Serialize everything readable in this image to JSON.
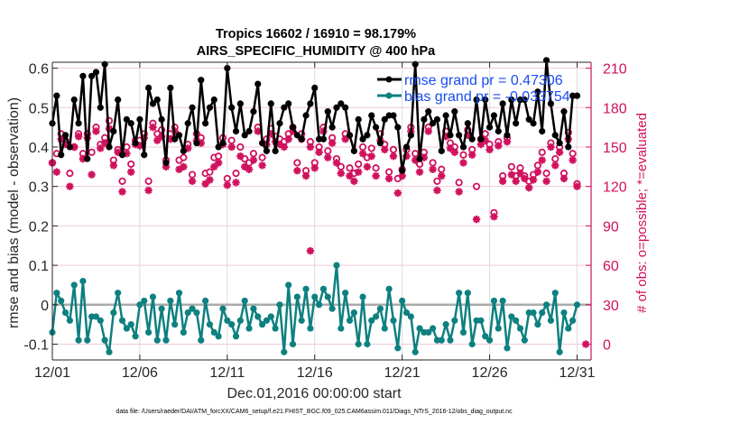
{
  "chart_data": {
    "type": "line",
    "title": "Tropics 16602 / 16910 = 98.179%",
    "subtitle": "AIRS_SPECIFIC_HUMIDITY @ 400 hPa",
    "xlabel": "Dec.01,2016 00:00:00 start",
    "ylabel": "rmse and bias (model - observation)",
    "ylabel_right": "# of obs: o=possible; *=evaluated",
    "footnote": "data file: /Users/raeder/DAI/ATM_forcXX/CAM6_setup/f.e21.FHIST_BGC.f09_025.CAM6assim.011/Diags_NTrS_2016-12/obs_diag_output.nc",
    "x_ticks": [
      0,
      5,
      10,
      15,
      20,
      25,
      30
    ],
    "x_tick_labels": [
      "12/01",
      "12/06",
      "12/11",
      "12/16",
      "12/21",
      "12/26",
      "12/31"
    ],
    "xlim": [
      0,
      30.8
    ],
    "ylim": [
      -0.14,
      0.615
    ],
    "y_ticks": [
      -0.1,
      0,
      0.1,
      0.2,
      0.3,
      0.4,
      0.5,
      0.6
    ],
    "y_tick_labels": [
      "-0.1",
      "0",
      "0.1",
      "0.2",
      "0.3",
      "0.4",
      "0.5",
      "0.6"
    ],
    "ylim_right": [
      -12,
      214.5
    ],
    "y_ticks_right": [
      0,
      30,
      60,
      90,
      120,
      150,
      180,
      210
    ],
    "y_tick_labels_right": [
      "0",
      "30",
      "60",
      "90",
      "120",
      "150",
      "180",
      "210"
    ],
    "grid": true,
    "zero_line": 0,
    "legend_placement": "top-right",
    "colors": {
      "rmse": "#000000",
      "bias": "#0E8080",
      "obs": "#D0115E",
      "legend_text": "#1a4cf0",
      "grid": "#f0c8d8",
      "zero": "#aaaaaa"
    },
    "x_step_days": 0.25,
    "series": [
      {
        "name": "rmse grand pr = 0.47306",
        "legend_label": "rmse grand pr = 0.47306",
        "values": [
          0.46,
          0.53,
          0.38,
          0.43,
          0.4,
          0.52,
          0.46,
          0.58,
          0.37,
          0.58,
          0.59,
          0.5,
          0.61,
          0.4,
          0.44,
          0.52,
          0.38,
          0.47,
          0.46,
          0.41,
          0.47,
          0.38,
          0.55,
          0.51,
          0.52,
          0.47,
          0.36,
          0.55,
          0.42,
          0.43,
          0.39,
          0.46,
          0.5,
          0.41,
          0.57,
          0.46,
          0.5,
          0.52,
          0.4,
          0.41,
          0.6,
          0.5,
          0.44,
          0.51,
          0.43,
          0.44,
          0.49,
          0.56,
          0.41,
          0.39,
          0.51,
          0.39,
          0.46,
          0.5,
          0.51,
          0.45,
          0.43,
          0.42,
          0.48,
          0.51,
          0.55,
          0.42,
          0.42,
          0.49,
          0.45,
          0.5,
          0.51,
          0.5,
          0.43,
          0.39,
          0.47,
          0.42,
          0.43,
          0.48,
          0.45,
          0.41,
          0.47,
          0.48,
          0.48,
          0.45,
          0.34,
          0.4,
          0.43,
          0.61,
          0.37,
          0.47,
          0.49,
          0.46,
          0.47,
          0.39,
          0.48,
          0.43,
          0.49,
          0.43,
          0.4,
          0.46,
          0.42,
          0.52,
          0.42,
          0.52,
          0.45,
          0.48,
          0.44,
          0.51,
          0.43,
          0.52,
          0.46,
          0.52,
          0.52,
          0.47,
          0.46,
          0.54,
          0.44,
          0.62,
          0.51,
          0.43,
          0.41,
          0.49,
          0.4,
          0.53,
          0.53
        ],
        "color": "#000000"
      },
      {
        "name": "bias grand pr = -0.033754",
        "legend_label": "bias grand pr = -0.033754",
        "values": [
          -0.07,
          0.03,
          0.01,
          -0.02,
          -0.04,
          0.05,
          -0.09,
          0.06,
          -0.09,
          -0.03,
          -0.03,
          -0.04,
          -0.09,
          -0.12,
          -0.02,
          0.03,
          -0.04,
          -0.06,
          -0.05,
          -0.08,
          0.0,
          0.01,
          -0.07,
          0.02,
          -0.09,
          -0.01,
          -0.09,
          0.01,
          -0.05,
          0.03,
          -0.07,
          -0.02,
          -0.01,
          -0.02,
          -0.09,
          0.01,
          -0.05,
          -0.07,
          -0.08,
          -0.01,
          -0.04,
          -0.05,
          -0.08,
          -0.04,
          0.01,
          -0.06,
          -0.01,
          -0.03,
          -0.05,
          -0.04,
          -0.03,
          -0.06,
          0.0,
          -0.12,
          0.05,
          -0.1,
          0.02,
          -0.04,
          0.04,
          -0.06,
          0.02,
          0.0,
          0.04,
          0.02,
          -0.01,
          0.1,
          -0.06,
          0.03,
          -0.04,
          -0.02,
          -0.1,
          0.02,
          -0.1,
          -0.04,
          -0.03,
          -0.01,
          -0.06,
          0.04,
          -0.04,
          -0.11,
          0.01,
          -0.02,
          -0.03,
          -0.12,
          -0.06,
          -0.07,
          -0.07,
          -0.06,
          -0.09,
          -0.09,
          -0.05,
          -0.09,
          -0.04,
          0.03,
          -0.07,
          0.03,
          -0.1,
          -0.04,
          -0.04,
          -0.08,
          -0.09,
          0.01,
          -0.06,
          0.01,
          -0.11,
          -0.03,
          -0.04,
          -0.06,
          -0.09,
          -0.02,
          -0.02,
          -0.05,
          -0.02,
          0.0,
          -0.04,
          0.03,
          -0.12,
          -0.02,
          -0.06,
          -0.04,
          0.0
        ],
        "color": "#0E8080"
      },
      {
        "name": "# of obs possible",
        "marker": "o",
        "values": [
          138,
          145,
          160,
          155,
          130,
          150,
          160,
          145,
          160,
          146,
          165,
          152,
          157,
          170,
          140,
          148,
          124,
          150,
          137,
          155,
          155,
          160,
          124,
          168,
          160,
          163,
          140,
          160,
          165,
          140,
          142,
          152,
          129,
          160,
          157,
          130,
          131,
          142,
          143,
          157,
          126,
          155,
          130,
          150,
          141,
          138,
          145,
          165,
          142,
          156,
          164,
          158,
          156,
          154,
          160,
          165,
          138,
          160,
          132,
          154,
          138,
          150,
          165,
          147,
          157,
          141,
          135,
          160,
          134,
          130,
          137,
          150,
          142,
          149,
          134,
          160,
          152,
          131,
          148,
          126,
          133,
          148,
          165,
          145,
          137,
          146,
          165,
          138,
          124,
          133,
          162,
          153,
          150,
          123,
          144,
          163,
          148,
          120,
          156,
          160,
          152,
          100,
          154,
          128,
          157,
          135,
          128,
          134,
          128,
          124,
          129,
          136,
          146,
          130,
          153,
          141,
          150,
          130,
          161,
          145,
          122
        ],
        "color": "#D0115E"
      },
      {
        "name": "# of obs evaluated",
        "marker": "*",
        "values": [
          138,
          131,
          156,
          152,
          120,
          150,
          158,
          141,
          157,
          129,
          162,
          149,
          153,
          164,
          136,
          146,
          116,
          145,
          131,
          152,
          151,
          157,
          117,
          165,
          155,
          158,
          135,
          156,
          162,
          133,
          135,
          149,
          124,
          155,
          153,
          122,
          125,
          135,
          138,
          152,
          121,
          150,
          123,
          143,
          135,
          133,
          140,
          162,
          136,
          152,
          160,
          154,
          152,
          150,
          156,
          162,
          132,
          156,
          128,
          150,
          134,
          146,
          162,
          142,
          153,
          138,
          130,
          156,
          128,
          124,
          131,
          145,
          135,
          143,
          128,
          155,
          148,
          126,
          143,
          115,
          128,
          143,
          162,
          140,
          131,
          142,
          162,
          133,
          117,
          128,
          158,
          149,
          146,
          116,
          138,
          159,
          144,
          95,
          152,
          155,
          148,
          97,
          151,
          124,
          154,
          129,
          124,
          130,
          126,
          119,
          125,
          131,
          140,
          124,
          150,
          136,
          146,
          126,
          156,
          140,
          120
        ],
        "color": "#D0115E"
      }
    ],
    "isolated_points": [
      {
        "x_day": 14.75,
        "obs": 71,
        "series": "# of obs evaluated"
      },
      {
        "x_day": 30.5,
        "obs": 0,
        "series": "# of obs evaluated"
      }
    ]
  }
}
